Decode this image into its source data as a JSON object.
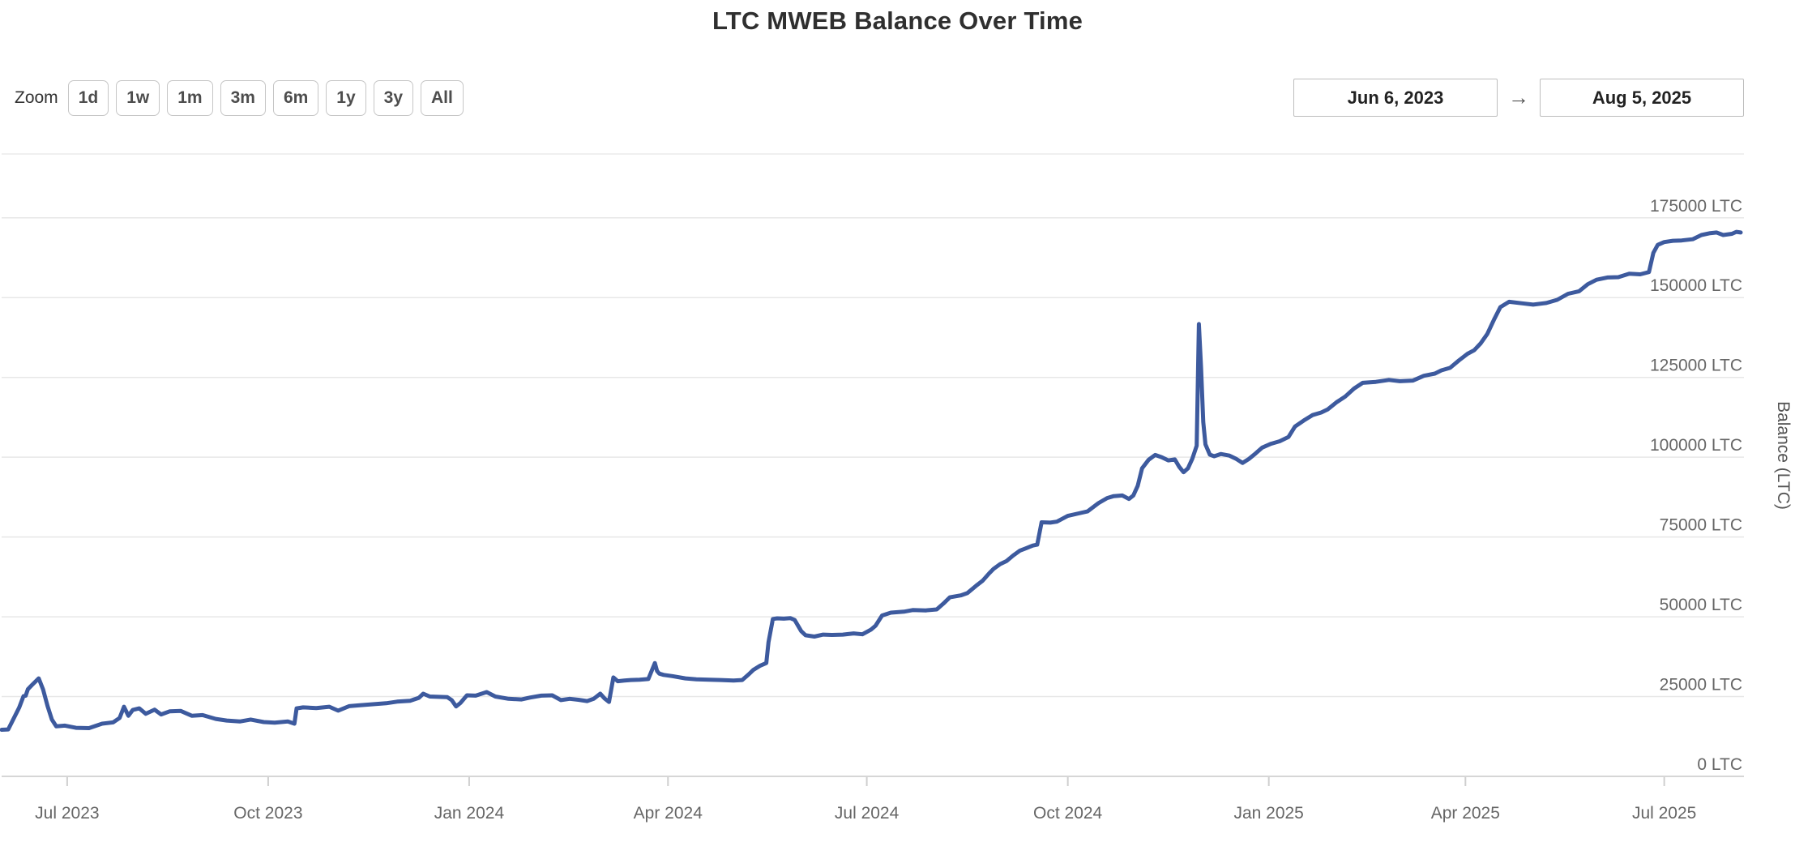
{
  "title": "LTC MWEB Balance Over Time",
  "range_selector": {
    "zoom_label": "Zoom",
    "buttons": [
      "1d",
      "1w",
      "1m",
      "3m",
      "6m",
      "1y",
      "3y",
      "All"
    ],
    "from_date": "Jun 6, 2023",
    "arrow": "→",
    "to_date": "Aug 5, 2025"
  },
  "chart_data": {
    "type": "line",
    "title": "LTC MWEB Balance Over Time",
    "series_name": "Balance",
    "ylabel": "Balance (LTC)",
    "ylim": [
      0,
      195000
    ],
    "x_range": [
      "2023-06-01",
      "2025-08-05"
    ],
    "grid": true,
    "legend": "none",
    "line_color": "#3d5a9e",
    "grid_color": "#e7e7e7",
    "axis_line_color": "#d6d6d6",
    "tick_color": "#cfcfcf",
    "label_color": "#666666",
    "y_ticks": [
      {
        "v": 0,
        "label": "0 LTC"
      },
      {
        "v": 25000,
        "label": "25000 LTC"
      },
      {
        "v": 50000,
        "label": "50000 LTC"
      },
      {
        "v": 75000,
        "label": "75000 LTC"
      },
      {
        "v": 100000,
        "label": "100000 LTC"
      },
      {
        "v": 125000,
        "label": "125000 LTC"
      },
      {
        "v": 150000,
        "label": "150000 LTC"
      },
      {
        "v": 175000,
        "label": "175000 LTC"
      }
    ],
    "x_ticks": [
      {
        "date": "2023-07-01",
        "label": "Jul 2023"
      },
      {
        "date": "2023-10-01",
        "label": "Oct 2023"
      },
      {
        "date": "2024-01-01",
        "label": "Jan 2024"
      },
      {
        "date": "2024-04-01",
        "label": "Apr 2024"
      },
      {
        "date": "2024-07-01",
        "label": "Jul 2024"
      },
      {
        "date": "2024-10-01",
        "label": "Oct 2024"
      },
      {
        "date": "2025-01-01",
        "label": "Jan 2025"
      },
      {
        "date": "2025-04-01",
        "label": "Apr 2025"
      },
      {
        "date": "2025-07-01",
        "label": "Jul 2025"
      }
    ],
    "points": [
      [
        "2023-06-01",
        14600
      ],
      [
        "2023-06-04",
        14700
      ],
      [
        "2023-06-09",
        21500
      ],
      [
        "2023-06-11",
        25100
      ],
      [
        "2023-06-12",
        25300
      ],
      [
        "2023-06-13",
        27300
      ],
      [
        "2023-06-15",
        28700
      ],
      [
        "2023-06-18",
        30700
      ],
      [
        "2023-06-20",
        27200
      ],
      [
        "2023-06-22",
        22100
      ],
      [
        "2023-06-24",
        17800
      ],
      [
        "2023-06-26",
        15700
      ],
      [
        "2023-06-30",
        15900
      ],
      [
        "2023-07-05",
        15200
      ],
      [
        "2023-07-11",
        15100
      ],
      [
        "2023-07-17",
        16500
      ],
      [
        "2023-07-22",
        16900
      ],
      [
        "2023-07-25",
        18300
      ],
      [
        "2023-07-27",
        21800
      ],
      [
        "2023-07-29",
        19000
      ],
      [
        "2023-07-31",
        20800
      ],
      [
        "2023-08-03",
        21300
      ],
      [
        "2023-08-06",
        19600
      ],
      [
        "2023-08-10",
        20900
      ],
      [
        "2023-08-13",
        19400
      ],
      [
        "2023-08-17",
        20400
      ],
      [
        "2023-08-22",
        20500
      ],
      [
        "2023-08-27",
        19000
      ],
      [
        "2023-09-01",
        19200
      ],
      [
        "2023-09-07",
        18000
      ],
      [
        "2023-09-12",
        17500
      ],
      [
        "2023-09-18",
        17200
      ],
      [
        "2023-09-23",
        17800
      ],
      [
        "2023-09-29",
        17000
      ],
      [
        "2023-10-04",
        16800
      ],
      [
        "2023-10-10",
        17200
      ],
      [
        "2023-10-13",
        16500
      ],
      [
        "2023-10-14",
        21300
      ],
      [
        "2023-10-17",
        21600
      ],
      [
        "2023-10-23",
        21400
      ],
      [
        "2023-10-29",
        21800
      ],
      [
        "2023-11-02",
        20600
      ],
      [
        "2023-11-07",
        22000
      ],
      [
        "2023-11-12",
        22300
      ],
      [
        "2023-11-18",
        22600
      ],
      [
        "2023-11-24",
        22900
      ],
      [
        "2023-11-29",
        23400
      ],
      [
        "2023-12-05",
        23700
      ],
      [
        "2023-12-09",
        24600
      ],
      [
        "2023-12-11",
        25900
      ],
      [
        "2023-12-14",
        25000
      ],
      [
        "2023-12-18",
        24900
      ],
      [
        "2023-12-22",
        24800
      ],
      [
        "2023-12-24",
        23900
      ],
      [
        "2023-12-26",
        21900
      ],
      [
        "2023-12-28",
        23000
      ],
      [
        "2023-12-31",
        25400
      ],
      [
        "2024-01-04",
        25300
      ],
      [
        "2024-01-09",
        26400
      ],
      [
        "2024-01-13",
        25000
      ],
      [
        "2024-01-19",
        24300
      ],
      [
        "2024-01-25",
        24100
      ],
      [
        "2024-01-29",
        24700
      ],
      [
        "2024-02-03",
        25300
      ],
      [
        "2024-02-08",
        25400
      ],
      [
        "2024-02-12",
        23900
      ],
      [
        "2024-02-16",
        24300
      ],
      [
        "2024-02-20",
        24000
      ],
      [
        "2024-02-24",
        23600
      ],
      [
        "2024-02-27",
        24300
      ],
      [
        "2024-03-01",
        25900
      ],
      [
        "2024-03-03",
        24400
      ],
      [
        "2024-03-05",
        23300
      ],
      [
        "2024-03-07",
        31000
      ],
      [
        "2024-03-09",
        29800
      ],
      [
        "2024-03-12",
        30000
      ],
      [
        "2024-03-15",
        30200
      ],
      [
        "2024-03-19",
        30300
      ],
      [
        "2024-03-23",
        30500
      ],
      [
        "2024-03-26",
        35500
      ],
      [
        "2024-03-27",
        33000
      ],
      [
        "2024-03-28",
        32200
      ],
      [
        "2024-03-30",
        31800
      ],
      [
        "2024-04-03",
        31400
      ],
      [
        "2024-04-09",
        30700
      ],
      [
        "2024-04-14",
        30400
      ],
      [
        "2024-04-20",
        30300
      ],
      [
        "2024-04-25",
        30200
      ],
      [
        "2024-05-01",
        30000
      ],
      [
        "2024-05-05",
        30200
      ],
      [
        "2024-05-08",
        32000
      ],
      [
        "2024-05-10",
        33300
      ],
      [
        "2024-05-13",
        34600
      ],
      [
        "2024-05-16",
        35500
      ],
      [
        "2024-05-17",
        42000
      ],
      [
        "2024-05-19",
        49300
      ],
      [
        "2024-05-21",
        49500
      ],
      [
        "2024-05-24",
        49400
      ],
      [
        "2024-05-27",
        49600
      ],
      [
        "2024-05-29",
        49000
      ],
      [
        "2024-06-01",
        45500
      ],
      [
        "2024-06-03",
        44200
      ],
      [
        "2024-06-07",
        43800
      ],
      [
        "2024-06-11",
        44400
      ],
      [
        "2024-06-15",
        44300
      ],
      [
        "2024-06-20",
        44400
      ],
      [
        "2024-06-25",
        44800
      ],
      [
        "2024-06-29",
        44500
      ],
      [
        "2024-07-03",
        46000
      ],
      [
        "2024-07-05",
        47200
      ],
      [
        "2024-07-08",
        50400
      ],
      [
        "2024-07-12",
        51300
      ],
      [
        "2024-07-18",
        51600
      ],
      [
        "2024-07-22",
        52100
      ],
      [
        "2024-07-28",
        52000
      ],
      [
        "2024-08-02",
        52300
      ],
      [
        "2024-08-05",
        54100
      ],
      [
        "2024-08-08",
        56100
      ],
      [
        "2024-08-13",
        56700
      ],
      [
        "2024-08-16",
        57400
      ],
      [
        "2024-08-20",
        59700
      ],
      [
        "2024-08-23",
        61300
      ],
      [
        "2024-08-26",
        63600
      ],
      [
        "2024-08-28",
        65000
      ],
      [
        "2024-08-31",
        66500
      ],
      [
        "2024-09-03",
        67500
      ],
      [
        "2024-09-06",
        69200
      ],
      [
        "2024-09-09",
        70700
      ],
      [
        "2024-09-12",
        71500
      ],
      [
        "2024-09-15",
        72300
      ],
      [
        "2024-09-17",
        72600
      ],
      [
        "2024-09-19",
        79600
      ],
      [
        "2024-09-23",
        79500
      ],
      [
        "2024-09-26",
        79800
      ],
      [
        "2024-10-01",
        81600
      ],
      [
        "2024-10-06",
        82400
      ],
      [
        "2024-10-10",
        83000
      ],
      [
        "2024-10-15",
        85600
      ],
      [
        "2024-10-19",
        87200
      ],
      [
        "2024-10-22",
        87800
      ],
      [
        "2024-10-26",
        88000
      ],
      [
        "2024-10-29",
        86900
      ],
      [
        "2024-10-31",
        88000
      ],
      [
        "2024-11-02",
        91000
      ],
      [
        "2024-11-04",
        96500
      ],
      [
        "2024-11-07",
        99200
      ],
      [
        "2024-11-10",
        100700
      ],
      [
        "2024-11-13",
        100000
      ],
      [
        "2024-11-16",
        99000
      ],
      [
        "2024-11-19",
        99300
      ],
      [
        "2024-11-21",
        97000
      ],
      [
        "2024-11-23",
        95300
      ],
      [
        "2024-11-25",
        96500
      ],
      [
        "2024-11-27",
        99500
      ],
      [
        "2024-11-29",
        103600
      ],
      [
        "2024-11-30",
        141700
      ],
      [
        "2024-12-01",
        128000
      ],
      [
        "2024-12-02",
        111000
      ],
      [
        "2024-12-03",
        104000
      ],
      [
        "2024-12-05",
        100800
      ],
      [
        "2024-12-07",
        100300
      ],
      [
        "2024-12-10",
        101000
      ],
      [
        "2024-12-14",
        100500
      ],
      [
        "2024-12-17",
        99500
      ],
      [
        "2024-12-20",
        98200
      ],
      [
        "2024-12-23",
        99500
      ],
      [
        "2024-12-26",
        101200
      ],
      [
        "2024-12-29",
        103000
      ],
      [
        "2025-01-02",
        104200
      ],
      [
        "2025-01-06",
        105000
      ],
      [
        "2025-01-10",
        106300
      ],
      [
        "2025-01-13",
        109600
      ],
      [
        "2025-01-17",
        111500
      ],
      [
        "2025-01-21",
        113200
      ],
      [
        "2025-01-25",
        114000
      ],
      [
        "2025-01-28",
        115000
      ],
      [
        "2025-02-01",
        117200
      ],
      [
        "2025-02-05",
        119000
      ],
      [
        "2025-02-09",
        121500
      ],
      [
        "2025-02-13",
        123300
      ],
      [
        "2025-02-19",
        123600
      ],
      [
        "2025-02-25",
        124200
      ],
      [
        "2025-03-02",
        123800
      ],
      [
        "2025-03-08",
        124000
      ],
      [
        "2025-03-13",
        125500
      ],
      [
        "2025-03-18",
        126200
      ],
      [
        "2025-03-21",
        127200
      ],
      [
        "2025-03-25",
        128000
      ],
      [
        "2025-03-29",
        130300
      ],
      [
        "2025-04-02",
        132400
      ],
      [
        "2025-04-05",
        133500
      ],
      [
        "2025-04-08",
        135700
      ],
      [
        "2025-04-11",
        138600
      ],
      [
        "2025-04-14",
        143000
      ],
      [
        "2025-04-17",
        147000
      ],
      [
        "2025-04-21",
        148700
      ],
      [
        "2025-04-27",
        148200
      ],
      [
        "2025-05-02",
        147800
      ],
      [
        "2025-05-08",
        148300
      ],
      [
        "2025-05-13",
        149300
      ],
      [
        "2025-05-18",
        151200
      ],
      [
        "2025-05-23",
        152000
      ],
      [
        "2025-05-27",
        154200
      ],
      [
        "2025-05-31",
        155600
      ],
      [
        "2025-06-05",
        156300
      ],
      [
        "2025-06-10",
        156400
      ],
      [
        "2025-06-15",
        157500
      ],
      [
        "2025-06-20",
        157300
      ],
      [
        "2025-06-24",
        158000
      ],
      [
        "2025-06-26",
        164000
      ],
      [
        "2025-06-28",
        166500
      ],
      [
        "2025-07-01",
        167400
      ],
      [
        "2025-07-05",
        167800
      ],
      [
        "2025-07-09",
        167900
      ],
      [
        "2025-07-14",
        168300
      ],
      [
        "2025-07-18",
        169600
      ],
      [
        "2025-07-22",
        170200
      ],
      [
        "2025-07-25",
        170400
      ],
      [
        "2025-07-28",
        169600
      ],
      [
        "2025-08-01",
        170000
      ],
      [
        "2025-08-03",
        170600
      ],
      [
        "2025-08-05",
        170400
      ]
    ]
  }
}
